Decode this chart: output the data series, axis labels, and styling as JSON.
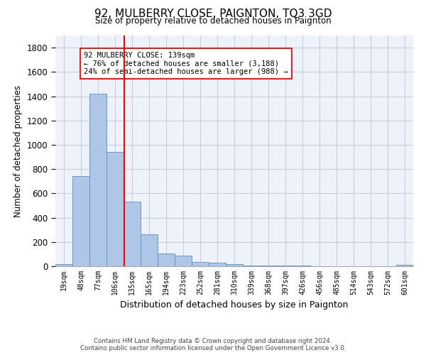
{
  "title": "92, MULBERRY CLOSE, PAIGNTON, TQ3 3GD",
  "subtitle": "Size of property relative to detached houses in Paignton",
  "xlabel": "Distribution of detached houses by size in Paignton",
  "ylabel": "Number of detached properties",
  "bar_labels": [
    "19sqm",
    "48sqm",
    "77sqm",
    "106sqm",
    "135sqm",
    "165sqm",
    "194sqm",
    "223sqm",
    "252sqm",
    "281sqm",
    "310sqm",
    "339sqm",
    "368sqm",
    "397sqm",
    "426sqm",
    "456sqm",
    "485sqm",
    "514sqm",
    "543sqm",
    "572sqm",
    "601sqm"
  ],
  "bar_values": [
    20,
    740,
    1420,
    940,
    530,
    265,
    103,
    90,
    38,
    28,
    18,
    7,
    7,
    5,
    3,
    2,
    2,
    1,
    1,
    1,
    12
  ],
  "bar_color": "#aec6e8",
  "bar_edge_color": "#5a8fc2",
  "vline_x": 3.55,
  "vline_color": "red",
  "annotation_text": "92 MULBERRY CLOSE: 139sqm\n← 76% of detached houses are smaller (3,188)\n24% of semi-detached houses are larger (988) →",
  "annotation_box_color": "white",
  "annotation_box_edge": "red",
  "ylim": [
    0,
    1900
  ],
  "yticks": [
    0,
    200,
    400,
    600,
    800,
    1000,
    1200,
    1400,
    1600,
    1800
  ],
  "footer": "Contains HM Land Registry data © Crown copyright and database right 2024.\nContains public sector information licensed under the Open Government Licence v3.0.",
  "bg_color": "#eef2f9",
  "grid_color": "#c8cede"
}
